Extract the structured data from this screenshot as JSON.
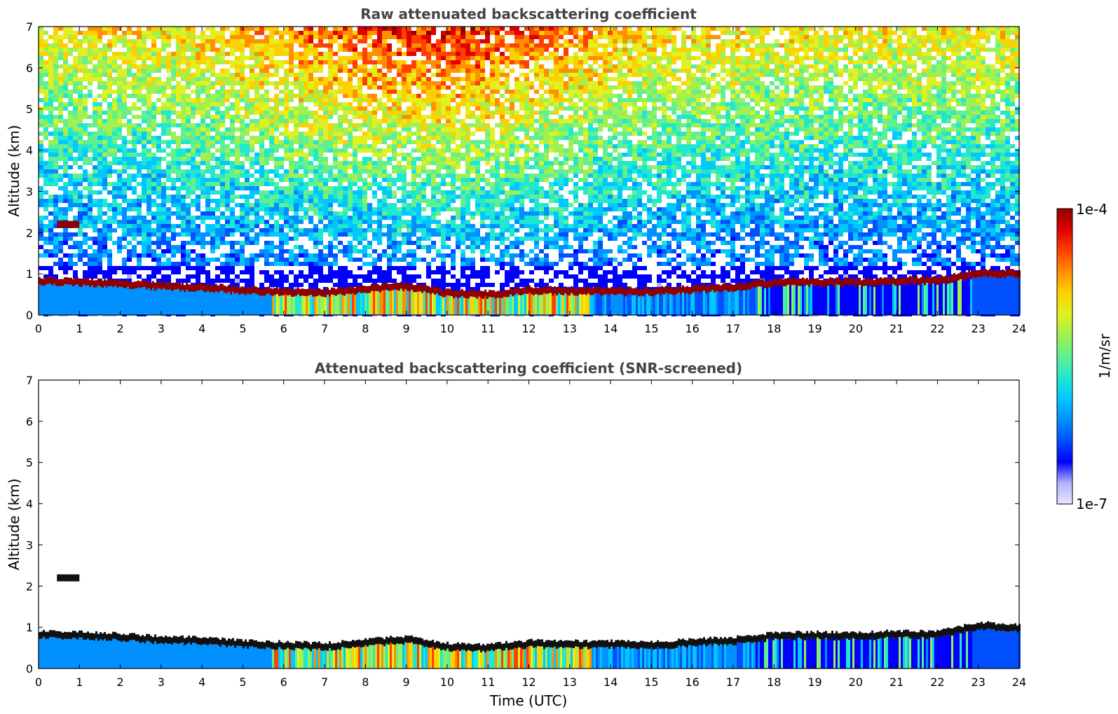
{
  "chart_data": [
    {
      "type": "heatmap",
      "title": "Raw attenuated backscattering coefficient",
      "xlabel": "",
      "ylabel": "Altitude (km)",
      "xlim": [
        0,
        24
      ],
      "ylim": [
        0,
        7
      ],
      "xticks": [
        "0",
        "1",
        "2",
        "3",
        "4",
        "5",
        "6",
        "7",
        "8",
        "9",
        "10",
        "11",
        "12",
        "13",
        "14",
        "15",
        "16",
        "17",
        "18",
        "19",
        "20",
        "21",
        "22",
        "23",
        "24"
      ],
      "yticks": [
        "0",
        "1",
        "2",
        "3",
        "4",
        "5",
        "6",
        "7"
      ],
      "layer_top_km": [
        {
          "t": 0,
          "z": 0.85
        },
        {
          "t": 1,
          "z": 0.82
        },
        {
          "t": 2,
          "z": 0.78
        },
        {
          "t": 3,
          "z": 0.72
        },
        {
          "t": 4,
          "z": 0.68
        },
        {
          "t": 5,
          "z": 0.62
        },
        {
          "t": 6,
          "z": 0.58
        },
        {
          "t": 7,
          "z": 0.55
        },
        {
          "t": 8,
          "z": 0.65
        },
        {
          "t": 9,
          "z": 0.72
        },
        {
          "t": 10,
          "z": 0.55
        },
        {
          "t": 11,
          "z": 0.52
        },
        {
          "t": 12,
          "z": 0.62
        },
        {
          "t": 13,
          "z": 0.6
        },
        {
          "t": 14,
          "z": 0.6
        },
        {
          "t": 15,
          "z": 0.58
        },
        {
          "t": 16,
          "z": 0.65
        },
        {
          "t": 17,
          "z": 0.7
        },
        {
          "t": 18,
          "z": 0.8
        },
        {
          "t": 19,
          "z": 0.82
        },
        {
          "t": 20,
          "z": 0.8
        },
        {
          "t": 21,
          "z": 0.85
        },
        {
          "t": 22,
          "z": 0.85
        },
        {
          "t": 23,
          "z": 1.05
        },
        {
          "t": 24,
          "z": 1.0
        }
      ],
      "elevated_layer": {
        "t_start": 0.45,
        "t_end": 1.0,
        "z": 2.2
      },
      "noise_background": true
    },
    {
      "type": "heatmap",
      "title": "Attenuated backscattering coefficient (SNR-screened)",
      "xlabel": "Time (UTC)",
      "ylabel": "Altitude (km)",
      "xlim": [
        0,
        24
      ],
      "ylim": [
        0,
        7
      ],
      "xticks": [
        "0",
        "1",
        "2",
        "3",
        "4",
        "5",
        "6",
        "7",
        "8",
        "9",
        "10",
        "11",
        "12",
        "13",
        "14",
        "15",
        "16",
        "17",
        "18",
        "19",
        "20",
        "21",
        "22",
        "23",
        "24"
      ],
      "yticks": [
        "0",
        "1",
        "2",
        "3",
        "4",
        "5",
        "6",
        "7"
      ],
      "layer_top_km": [
        {
          "t": 0,
          "z": 0.85
        },
        {
          "t": 1,
          "z": 0.82
        },
        {
          "t": 2,
          "z": 0.78
        },
        {
          "t": 3,
          "z": 0.72
        },
        {
          "t": 4,
          "z": 0.68
        },
        {
          "t": 5,
          "z": 0.62
        },
        {
          "t": 6,
          "z": 0.58
        },
        {
          "t": 7,
          "z": 0.55
        },
        {
          "t": 8,
          "z": 0.65
        },
        {
          "t": 9,
          "z": 0.72
        },
        {
          "t": 10,
          "z": 0.55
        },
        {
          "t": 11,
          "z": 0.52
        },
        {
          "t": 12,
          "z": 0.62
        },
        {
          "t": 13,
          "z": 0.6
        },
        {
          "t": 14,
          "z": 0.6
        },
        {
          "t": 15,
          "z": 0.58
        },
        {
          "t": 16,
          "z": 0.65
        },
        {
          "t": 17,
          "z": 0.7
        },
        {
          "t": 18,
          "z": 0.8
        },
        {
          "t": 19,
          "z": 0.82
        },
        {
          "t": 20,
          "z": 0.8
        },
        {
          "t": 21,
          "z": 0.85
        },
        {
          "t": 22,
          "z": 0.85
        },
        {
          "t": 23,
          "z": 1.05
        },
        {
          "t": 24,
          "z": 1.0
        }
      ],
      "elevated_layer": {
        "t_start": 0.45,
        "t_end": 1.0,
        "z": 2.2
      },
      "noise_background": false
    }
  ],
  "colorbar": {
    "label": "1/m/sr",
    "max_label": "1e-4",
    "min_label": "1e-7",
    "colormap": [
      "#e8e8ff",
      "#b0b0ff",
      "#0000ff",
      "#0050ff",
      "#0090ff",
      "#00c8ff",
      "#20e8d0",
      "#60f090",
      "#a0f050",
      "#e0f020",
      "#ffd000",
      "#ff9000",
      "#ff4000",
      "#e00000",
      "#900000"
    ]
  }
}
